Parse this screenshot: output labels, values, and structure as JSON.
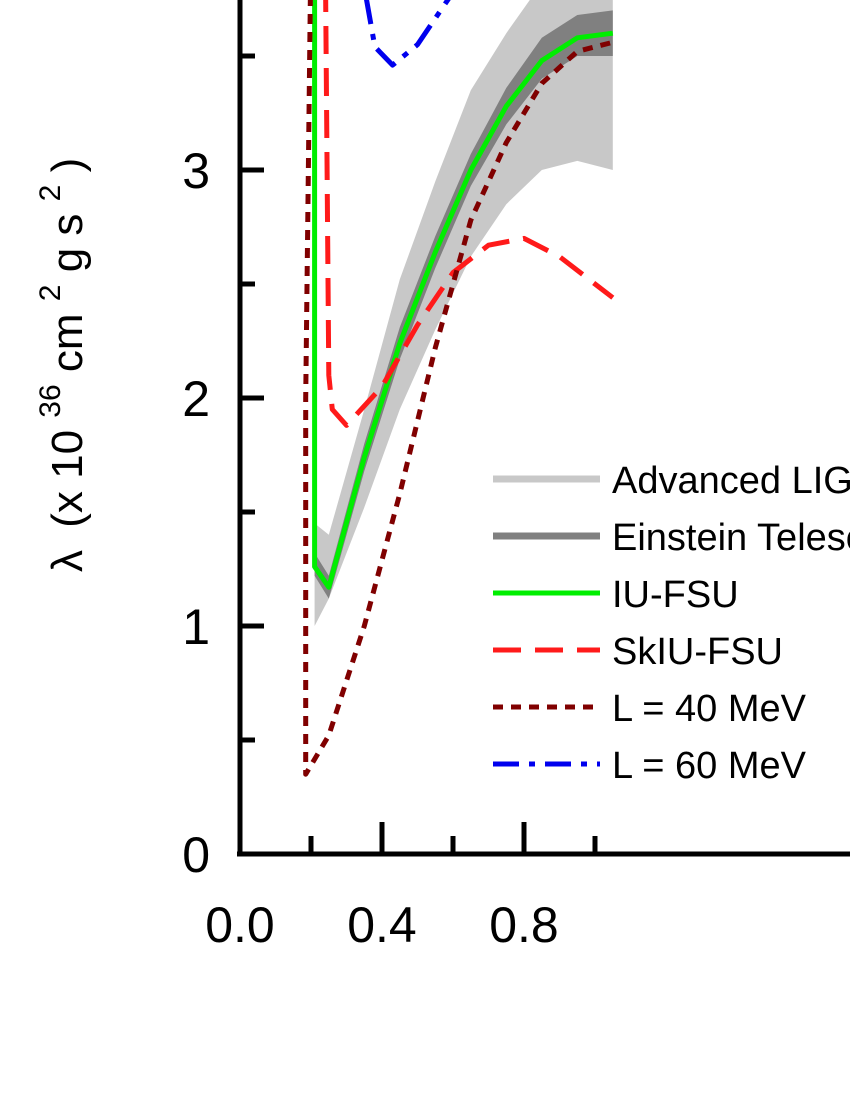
{
  "chart_data": {
    "type": "line",
    "title": "",
    "xlabel": "",
    "ylabel": {
      "lambda": "λ",
      "open": "(x 10",
      "exp36": "36",
      "cm": " cm",
      "exp2a": "2",
      "g_s": " g s",
      "exp2b": "2",
      "close": ")"
    },
    "xlim": [
      0.0,
      1.05
    ],
    "ylim": [
      0,
      3.75
    ],
    "x_major_ticks": [
      0.0,
      0.4,
      0.8
    ],
    "x_tick_labels": [
      "0.0",
      "0.4",
      "0.8"
    ],
    "x_minor_ticks": [
      0.2,
      0.6,
      1.0
    ],
    "y_major_ticks": [
      0,
      1,
      2,
      3
    ],
    "y_tick_labels": [
      "0",
      "1",
      "2",
      "3"
    ],
    "y_minor_ticks": [
      0.5,
      1.5,
      2.5,
      3.5
    ],
    "series": [
      {
        "name": "Advanced LIGO",
        "kind": "band",
        "color": "#c8c8c8",
        "x": [
          0.21,
          0.21,
          0.25,
          0.35,
          0.45,
          0.55,
          0.65,
          0.75,
          0.85,
          0.95,
          1.05
        ],
        "lower": [
          0.82,
          1.0,
          1.12,
          1.52,
          1.95,
          2.3,
          2.62,
          2.85,
          3.0,
          3.04,
          3.0
        ],
        "upper": [
          1.72,
          1.45,
          1.4,
          1.95,
          2.52,
          2.95,
          3.35,
          3.6,
          3.82,
          3.95,
          4.0
        ]
      },
      {
        "name": "Einstein Telescope",
        "kind": "band",
        "color": "#808080",
        "x": [
          0.21,
          0.21,
          0.25,
          0.35,
          0.45,
          0.55,
          0.65,
          0.75,
          0.85,
          0.95,
          1.05
        ],
        "lower": [
          1.18,
          1.22,
          1.12,
          1.68,
          2.17,
          2.57,
          2.93,
          3.2,
          3.4,
          3.5,
          3.5
        ],
        "upper": [
          1.3,
          1.32,
          1.22,
          1.8,
          2.31,
          2.71,
          3.07,
          3.36,
          3.58,
          3.68,
          3.7
        ]
      },
      {
        "name": "IU-FSU",
        "kind": "line",
        "color": "#00ee00",
        "dash": "",
        "x": [
          0.21,
          0.21,
          0.25,
          0.35,
          0.45,
          0.55,
          0.65,
          0.75,
          0.85,
          0.95,
          1.05
        ],
        "y": [
          4.0,
          1.26,
          1.17,
          1.74,
          2.24,
          2.64,
          3.0,
          3.28,
          3.48,
          3.58,
          3.6
        ]
      },
      {
        "name": "SkIU-FSU",
        "kind": "line",
        "color": "#ff1a1a",
        "dash": "28 14",
        "x": [
          0.24,
          0.25,
          0.26,
          0.3,
          0.4,
          0.5,
          0.6,
          0.7,
          0.8,
          0.9,
          1.0,
          1.05
        ],
        "y": [
          4.0,
          2.1,
          1.95,
          1.88,
          2.05,
          2.32,
          2.55,
          2.67,
          2.7,
          2.62,
          2.5,
          2.44
        ]
      },
      {
        "name": "L = 40 MeV",
        "kind": "line",
        "color": "#800000",
        "dash": "10 8",
        "x": [
          0.2,
          0.185,
          0.185,
          0.25,
          0.35,
          0.45,
          0.55,
          0.65,
          0.75,
          0.85,
          0.95,
          1.05
        ],
        "y": [
          4.0,
          2.0,
          0.35,
          0.52,
          1.0,
          1.58,
          2.22,
          2.78,
          3.12,
          3.38,
          3.52,
          3.56
        ]
      },
      {
        "name": "L = 60 MeV",
        "kind": "line",
        "color": "#0000ee",
        "dash": "26 10 6 10",
        "x": [
          0.3,
          0.33,
          0.38,
          0.43,
          0.5,
          0.6,
          0.7,
          0.8,
          0.88
        ],
        "y": [
          4.2,
          3.98,
          3.54,
          3.46,
          3.55,
          3.78,
          4.0,
          4.25,
          4.4
        ]
      }
    ],
    "legend": {
      "placement": "lower-right",
      "entries": [
        "Advanced LIGO",
        "Einstein Telescope",
        "IU-FSU",
        "SkIU-FSU",
        "L = 40 MeV",
        "L = 60 MeV"
      ]
    }
  }
}
